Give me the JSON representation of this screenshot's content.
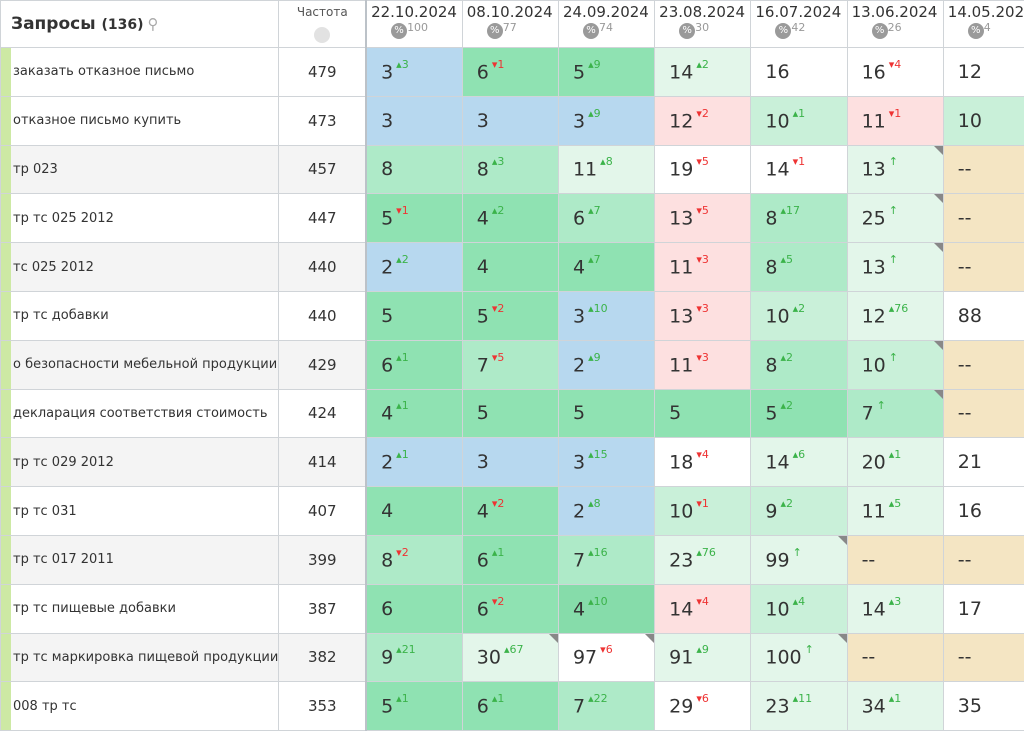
{
  "header": {
    "title": "Запросы",
    "count": "(136)",
    "freq_label": "Частота"
  },
  "dates": [
    {
      "date": "22.10.2024",
      "pct": "100"
    },
    {
      "date": "08.10.2024",
      "pct": "77"
    },
    {
      "date": "24.09.2024",
      "pct": "74"
    },
    {
      "date": "23.08.2024",
      "pct": "30"
    },
    {
      "date": "16.07.2024",
      "pct": "42"
    },
    {
      "date": "13.06.2024",
      "pct": "26"
    },
    {
      "date": "14.05.2024",
      "pct": "4"
    }
  ],
  "colors": {
    "b": "#b7d8ef",
    "d": "#8fe2b2",
    "m": "#aeeac8",
    "l": "#c9f0d9",
    "v": "#e3f6ea",
    "p": "#fde0e0",
    "w": "#ffffff",
    "t": "#f4e5c3",
    "x": "#86dcaa"
  },
  "rows": [
    {
      "q": "заказать отказное письмо",
      "f": "479",
      "c": [
        [
          "3",
          "3",
          "u",
          "b"
        ],
        [
          "6",
          "1",
          "d",
          "d"
        ],
        [
          "5",
          "9",
          "u",
          "d"
        ],
        [
          "14",
          "2",
          "u",
          "v"
        ],
        [
          "16",
          "",
          "",
          "w"
        ],
        [
          "16",
          "4",
          "d",
          "w"
        ],
        [
          "12",
          "",
          "",
          "w"
        ]
      ]
    },
    {
      "q": "отказное письмо купить",
      "f": "473",
      "c": [
        [
          "3",
          "",
          "",
          "b"
        ],
        [
          "3",
          "",
          "",
          "b"
        ],
        [
          "3",
          "9",
          "u",
          "b"
        ],
        [
          "12",
          "2",
          "d",
          "p"
        ],
        [
          "10",
          "1",
          "u",
          "l"
        ],
        [
          "11",
          "1",
          "d",
          "p"
        ],
        [
          "10",
          "",
          "",
          "l"
        ]
      ]
    },
    {
      "q": "тр 023",
      "f": "457",
      "c": [
        [
          "8",
          "",
          "",
          "m"
        ],
        [
          "8",
          "3",
          "u",
          "m"
        ],
        [
          "11",
          "8",
          "u",
          "v"
        ],
        [
          "19",
          "5",
          "d",
          "w"
        ],
        [
          "14",
          "1",
          "d",
          "w"
        ],
        [
          "13",
          "↑",
          "a",
          "v",
          1
        ],
        [
          "--",
          "",
          "",
          "t"
        ]
      ]
    },
    {
      "q": "тр тс 025 2012",
      "f": "447",
      "c": [
        [
          "5",
          "1",
          "d",
          "d"
        ],
        [
          "4",
          "2",
          "u",
          "d"
        ],
        [
          "6",
          "7",
          "u",
          "m"
        ],
        [
          "13",
          "5",
          "d",
          "p"
        ],
        [
          "8",
          "17",
          "u",
          "m"
        ],
        [
          "25",
          "↑",
          "a",
          "v",
          1
        ],
        [
          "--",
          "",
          "",
          "t"
        ]
      ]
    },
    {
      "q": "тс 025 2012",
      "f": "440",
      "c": [
        [
          "2",
          "2",
          "u",
          "b"
        ],
        [
          "4",
          "",
          "",
          "d"
        ],
        [
          "4",
          "7",
          "u",
          "d"
        ],
        [
          "11",
          "3",
          "d",
          "p"
        ],
        [
          "8",
          "5",
          "u",
          "m"
        ],
        [
          "13",
          "↑",
          "a",
          "v",
          1
        ],
        [
          "--",
          "",
          "",
          "t"
        ]
      ]
    },
    {
      "q": "тр тс добавки",
      "f": "440",
      "c": [
        [
          "5",
          "",
          "",
          "d"
        ],
        [
          "5",
          "2",
          "d",
          "d"
        ],
        [
          "3",
          "10",
          "u",
          "b"
        ],
        [
          "13",
          "3",
          "d",
          "p"
        ],
        [
          "10",
          "2",
          "u",
          "l"
        ],
        [
          "12",
          "76",
          "u",
          "v"
        ],
        [
          "88",
          "",
          "",
          "w"
        ]
      ]
    },
    {
      "q": "о безопасности мебельной продукции",
      "f": "429",
      "c": [
        [
          "6",
          "1",
          "u",
          "d"
        ],
        [
          "7",
          "5",
          "d",
          "m"
        ],
        [
          "2",
          "9",
          "u",
          "b"
        ],
        [
          "11",
          "3",
          "d",
          "p"
        ],
        [
          "8",
          "2",
          "u",
          "m"
        ],
        [
          "10",
          "↑",
          "a",
          "l",
          1
        ],
        [
          "--",
          "",
          "",
          "t"
        ]
      ]
    },
    {
      "q": "декларация соответствия стоимость",
      "f": "424",
      "c": [
        [
          "4",
          "1",
          "u",
          "d"
        ],
        [
          "5",
          "",
          "",
          "d"
        ],
        [
          "5",
          "",
          "",
          "d"
        ],
        [
          "5",
          "",
          "",
          "d"
        ],
        [
          "5",
          "2",
          "u",
          "d"
        ],
        [
          "7",
          "↑",
          "a",
          "m",
          1
        ],
        [
          "--",
          "",
          "",
          "t"
        ]
      ]
    },
    {
      "q": "тр тс 029 2012",
      "f": "414",
      "c": [
        [
          "2",
          "1",
          "u",
          "b"
        ],
        [
          "3",
          "",
          "",
          "b"
        ],
        [
          "3",
          "15",
          "u",
          "b"
        ],
        [
          "18",
          "4",
          "d",
          "w"
        ],
        [
          "14",
          "6",
          "u",
          "v"
        ],
        [
          "20",
          "1",
          "u",
          "v"
        ],
        [
          "21",
          "",
          "",
          "w"
        ]
      ]
    },
    {
      "q": "тр тс 031",
      "f": "407",
      "c": [
        [
          "4",
          "",
          "",
          "d"
        ],
        [
          "4",
          "2",
          "d",
          "d"
        ],
        [
          "2",
          "8",
          "u",
          "b"
        ],
        [
          "10",
          "1",
          "d",
          "l"
        ],
        [
          "9",
          "2",
          "u",
          "l"
        ],
        [
          "11",
          "5",
          "u",
          "v"
        ],
        [
          "16",
          "",
          "",
          "w"
        ]
      ]
    },
    {
      "q": "тр тс 017 2011",
      "f": "399",
      "c": [
        [
          "8",
          "2",
          "d",
          "m"
        ],
        [
          "6",
          "1",
          "u",
          "d"
        ],
        [
          "7",
          "16",
          "u",
          "m"
        ],
        [
          "23",
          "76",
          "u",
          "v"
        ],
        [
          "99",
          "↑",
          "a",
          "v",
          1
        ],
        [
          "--",
          "",
          "",
          "t"
        ],
        [
          "--",
          "",
          "",
          "t"
        ]
      ]
    },
    {
      "q": "тр тс пищевые добавки",
      "f": "387",
      "c": [
        [
          "6",
          "",
          "",
          "d"
        ],
        [
          "6",
          "2",
          "d",
          "d"
        ],
        [
          "4",
          "10",
          "u",
          "x"
        ],
        [
          "14",
          "4",
          "d",
          "p"
        ],
        [
          "10",
          "4",
          "u",
          "l"
        ],
        [
          "14",
          "3",
          "u",
          "v"
        ],
        [
          "17",
          "",
          "",
          "w"
        ]
      ]
    },
    {
      "q": "тр тс маркировка пищевой продукции",
      "f": "382",
      "c": [
        [
          "9",
          "21",
          "u",
          "m"
        ],
        [
          "30",
          "67",
          "u",
          "v",
          1
        ],
        [
          "97",
          "6",
          "d",
          "w",
          1
        ],
        [
          "91",
          "9",
          "u",
          "v"
        ],
        [
          "100",
          "↑",
          "a",
          "v",
          1
        ],
        [
          "--",
          "",
          "",
          "t"
        ],
        [
          "--",
          "",
          "",
          "t"
        ]
      ]
    },
    {
      "q": "008 тр тс",
      "f": "353",
      "c": [
        [
          "5",
          "1",
          "u",
          "d"
        ],
        [
          "6",
          "1",
          "u",
          "d"
        ],
        [
          "7",
          "22",
          "u",
          "m"
        ],
        [
          "29",
          "6",
          "d",
          "w"
        ],
        [
          "23",
          "11",
          "u",
          "v"
        ],
        [
          "34",
          "1",
          "u",
          "v"
        ],
        [
          "35",
          "",
          "",
          "w"
        ]
      ]
    }
  ]
}
